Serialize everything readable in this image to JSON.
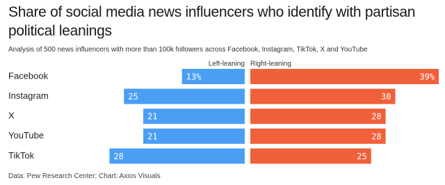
{
  "chart_data": {
    "type": "diverging-bar",
    "title": "Share of social media news influencers who identify with partisan political leanings",
    "subtitle": "Analysis of 500 news influencers with more than 100k followers across Facebook, Instagram, TikTok, X and YouTube",
    "categories": [
      "Facebook",
      "Instagram",
      "X",
      "YouTube",
      "TikTok"
    ],
    "series": [
      {
        "name": "Left-leaning",
        "color": "#4a9ff5",
        "values": [
          13,
          25,
          21,
          21,
          28
        ],
        "value_labels": [
          "13%",
          "25",
          "21",
          "21",
          "28"
        ]
      },
      {
        "name": "Right-leaning",
        "color": "#f0603a",
        "values": [
          39,
          30,
          28,
          28,
          25
        ],
        "value_labels": [
          "39%",
          "30",
          "28",
          "28",
          "25"
        ]
      }
    ],
    "source": "Data: Pew Research Center; Chart: Axios Visuals"
  }
}
